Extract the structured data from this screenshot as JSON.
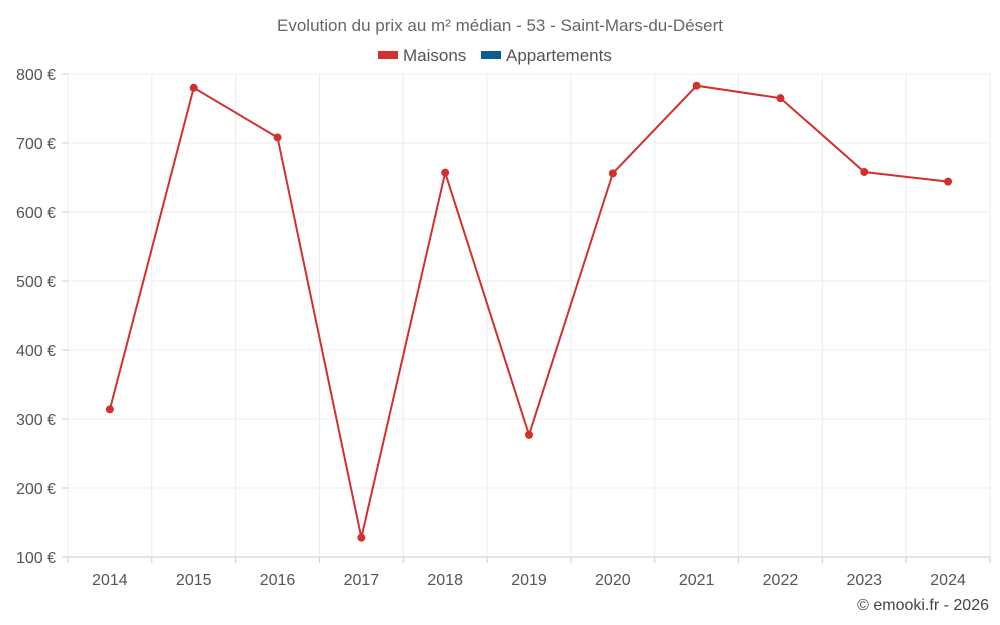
{
  "chart_data": {
    "type": "line",
    "title": "Evolution du prix au m² médian - 53 - Saint-Mars-du-Désert",
    "categories": [
      "2014",
      "2015",
      "2016",
      "2017",
      "2018",
      "2019",
      "2020",
      "2021",
      "2022",
      "2023",
      "2024"
    ],
    "series": [
      {
        "name": "Maisons",
        "color": "#d32f2f",
        "values": [
          314,
          780,
          708,
          128,
          657,
          277,
          656,
          783,
          765,
          658,
          644
        ]
      },
      {
        "name": "Appartements",
        "color": "#0b5d91",
        "values": [
          null,
          null,
          null,
          null,
          null,
          null,
          null,
          null,
          null,
          null,
          null
        ]
      }
    ],
    "ylim": [
      100,
      800
    ],
    "yticks": [
      100,
      200,
      300,
      400,
      500,
      600,
      700,
      800
    ],
    "ytick_labels": [
      "100 €",
      "200 €",
      "300 €",
      "400 €",
      "500 €",
      "600 €",
      "700 €",
      "800 €"
    ],
    "xlabel": "",
    "ylabel": "",
    "grid": true,
    "legend_position": "top"
  },
  "credit": "© emooki.fr - 2026"
}
